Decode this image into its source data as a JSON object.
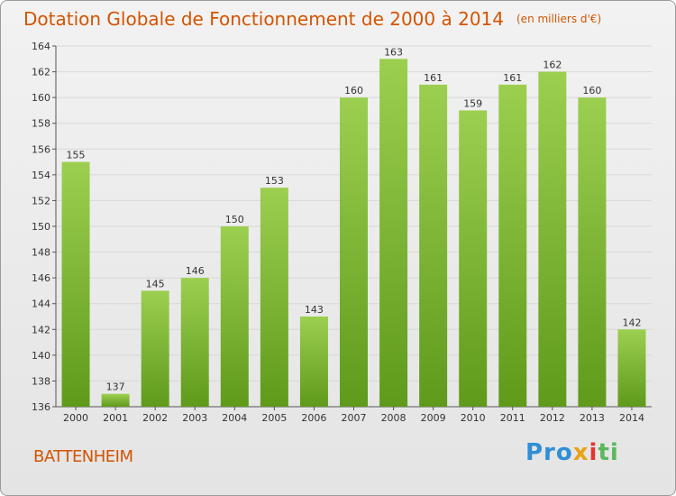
{
  "header": {
    "title": "Dotation Globale de Fonctionnement de 2000 à 2014",
    "subtitle": "(en milliers d'€)"
  },
  "commune": "BATTENHEIM",
  "logo": {
    "text": "Proxiti",
    "parts": [
      "Pro",
      "x",
      "i",
      "ti"
    ]
  },
  "colors": {
    "title": "#d35400",
    "bar_light": "#9ccf50",
    "bar_dark": "#5f9a1b",
    "grid": "#d8d8d8"
  },
  "chart_data": {
    "type": "bar",
    "title": "Dotation Globale de Fonctionnement de 2000 à 2014",
    "subtitle": "(en milliers d'€)",
    "xlabel": "",
    "ylabel": "",
    "categories": [
      "2000",
      "2001",
      "2002",
      "2003",
      "2004",
      "2005",
      "2006",
      "2007",
      "2008",
      "2009",
      "2010",
      "2011",
      "2012",
      "2013",
      "2014"
    ],
    "values": [
      155,
      137,
      145,
      146,
      150,
      153,
      143,
      160,
      163,
      161,
      159,
      161,
      162,
      160,
      142
    ],
    "ylim": [
      136,
      164
    ],
    "yticks": [
      136,
      138,
      140,
      142,
      144,
      146,
      148,
      150,
      152,
      154,
      156,
      158,
      160,
      162,
      164
    ],
    "grid": true,
    "legend": "none"
  }
}
